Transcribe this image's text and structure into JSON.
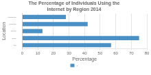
{
  "chart_data": {
    "type": "bar",
    "orientation": "horizontal",
    "title": "The Percentage of Individuals Using the Internet by Region 2014",
    "xlabel": "Percentage",
    "ylabel": "Location",
    "categories": [
      "--",
      "---",
      "----",
      "-----",
      "------"
    ],
    "series": [
      {
        "name": "-",
        "color": "#4a90c4",
        "values": [
          57,
          75,
          13,
          42,
          28
        ]
      }
    ],
    "xlim": [
      0,
      80
    ],
    "xticks": [
      0,
      10,
      20,
      30,
      40,
      50,
      60,
      70,
      80
    ],
    "grid": true,
    "legend": "bottom"
  }
}
